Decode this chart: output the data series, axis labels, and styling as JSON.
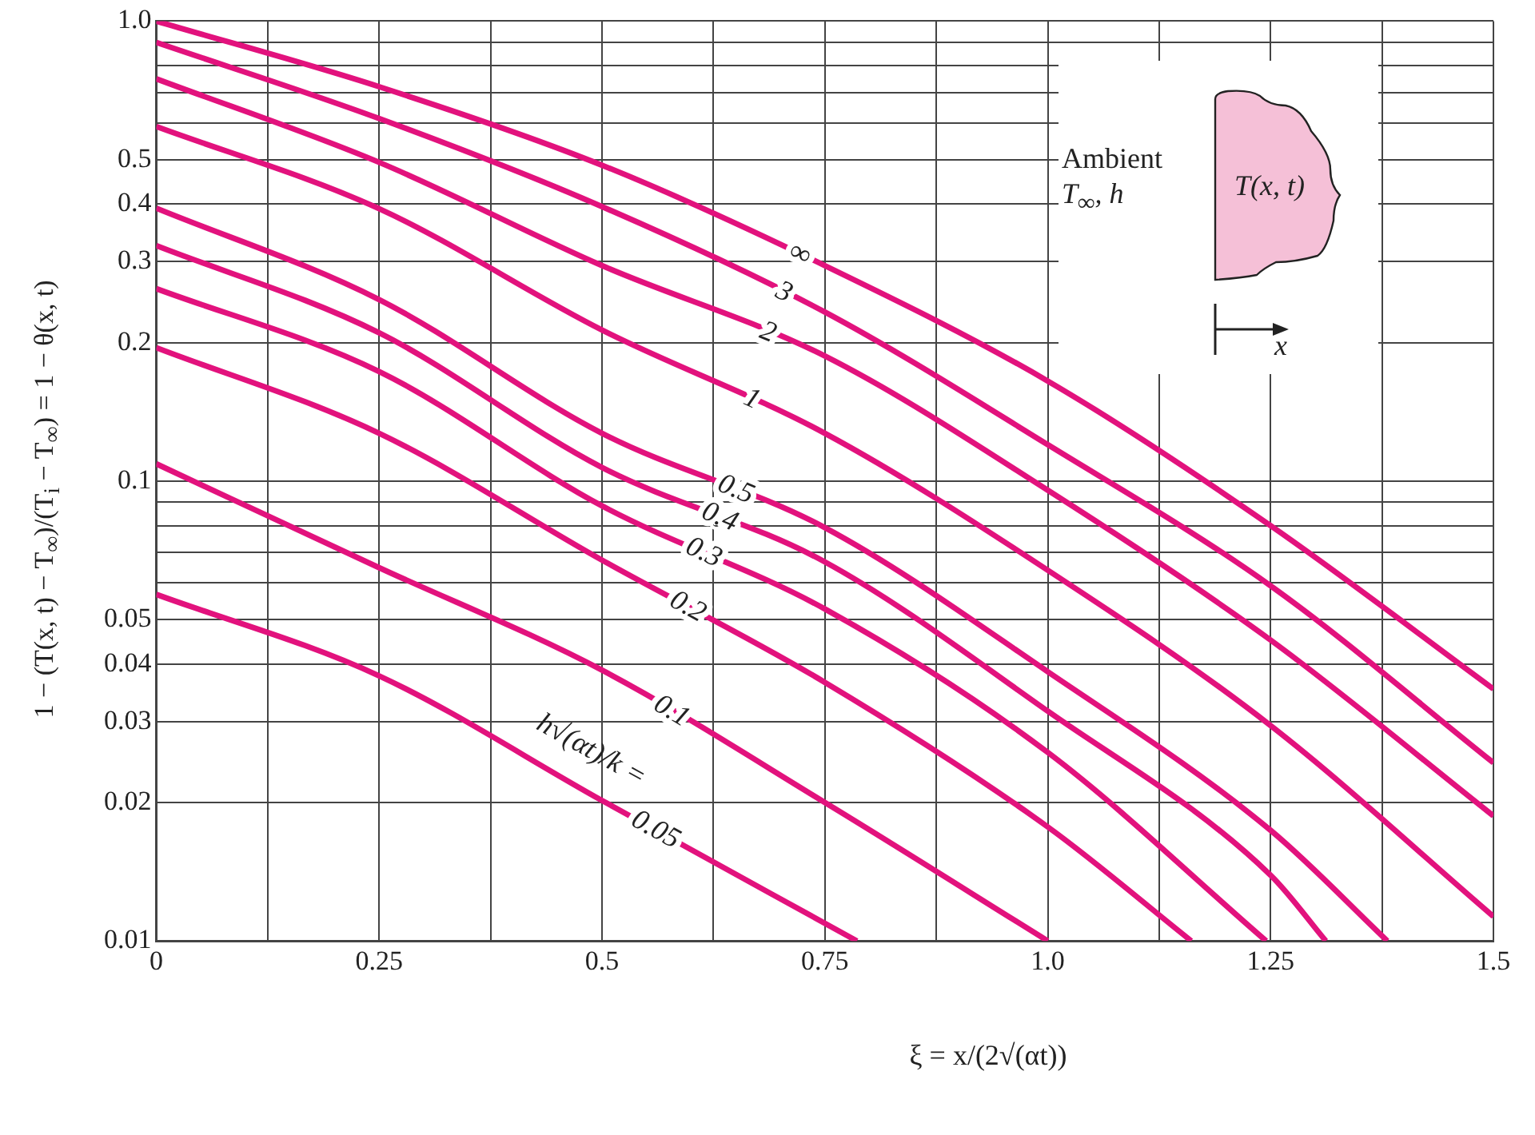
{
  "chart_data": {
    "type": "line",
    "xlabel": "ξ = x/(2√(αt))",
    "ylabel": "1 − (T(x, t) − T$_{∞}$)/(T$_{i}$ − T$_{∞}$) = 1 − θ(x, t)",
    "legend_title": "h√(αt)/k =",
    "annotations": [
      "Ambient",
      "T$_{∞}$, h",
      "T(x, t)",
      "x"
    ],
    "x": [
      0,
      0.25,
      0.5,
      0.75,
      1,
      1.25,
      1.5
    ],
    "series": [
      {
        "name": "∞",
        "color": "#e2127d",
        "values": [
          1.0,
          0.72,
          0.486,
          0.294,
          0.165,
          0.08,
          0.0353
        ]
      },
      {
        "name": "3",
        "color": "#e2127d",
        "values": [
          0.899,
          0.614,
          0.395,
          0.233,
          0.12,
          0.0592,
          0.0244
        ]
      },
      {
        "name": "2",
        "color": "#e2127d",
        "values": [
          0.749,
          0.493,
          0.294,
          0.187,
          0.0955,
          0.0451,
          0.0187
        ]
      },
      {
        "name": "1",
        "color": "#e2127d",
        "values": [
          0.59,
          0.391,
          0.213,
          0.127,
          0.064,
          0.0294,
          0.0113
        ]
      },
      {
        "name": "0.5",
        "color": "#e2127d",
        "x": [
          0,
          0.25,
          0.5,
          0.75,
          1,
          1.25,
          1.381
        ],
        "values": [
          0.392,
          0.248,
          0.127,
          0.0792,
          0.0385,
          0.0174,
          0.01
        ]
      },
      {
        "name": "0.4",
        "color": "#e2127d",
        "x": [
          0,
          0.25,
          0.5,
          0.75,
          1,
          1.25,
          1.312
        ],
        "values": [
          0.325,
          0.21,
          0.107,
          0.0667,
          0.0316,
          0.0139,
          0.01
        ]
      },
      {
        "name": "0.3",
        "color": "#e2127d",
        "x": [
          0,
          0.25,
          0.5,
          0.75,
          1,
          1.245
        ],
        "values": [
          0.262,
          0.173,
          0.0883,
          0.0527,
          0.0257,
          0.01
        ]
      },
      {
        "name": "0.2",
        "color": "#e2127d",
        "x": [
          0,
          0.25,
          0.5,
          0.75,
          1,
          1.161
        ],
        "values": [
          0.195,
          0.127,
          0.0673,
          0.0365,
          0.0177,
          0.01
        ]
      },
      {
        "name": "0.1",
        "color": "#e2127d",
        "x": [
          0,
          0.25,
          0.5,
          0.75,
          1
        ],
        "values": [
          0.109,
          0.0648,
          0.0388,
          0.02,
          0.01
        ]
      },
      {
        "name": "0.05",
        "color": "#e2127d",
        "x": [
          0,
          0.25,
          0.5,
          0.786
        ],
        "values": [
          0.0567,
          0.0377,
          0.0202,
          0.01
        ]
      }
    ],
    "log": "y",
    "grid": true,
    "legend": false,
    "xlim": [
      0,
      1.5
    ],
    "xticks": [
      0,
      {
        "value": 0.125,
        "label": null
      },
      0.25,
      {
        "value": 0.375,
        "label": null
      },
      0.5,
      {
        "value": 0.625,
        "label": null
      },
      0.75,
      {
        "value": 0.875,
        "label": null
      },
      {
        "value": 1,
        "label": "1.0"
      },
      {
        "value": 1.125,
        "label": null
      },
      1.25,
      {
        "value": 1.375,
        "label": null
      },
      1.5
    ],
    "ylim": [
      0.01,
      1
    ],
    "yticks": [
      0.01,
      0.02,
      0.03,
      0.04,
      0.05,
      {
        "value": 0.06,
        "label": null
      },
      {
        "value": 0.07,
        "label": null
      },
      {
        "value": 0.08,
        "label": null
      },
      {
        "value": 0.09,
        "label": null
      },
      0.1,
      0.2,
      0.3,
      0.4,
      0.5,
      {
        "value": 0.6,
        "label": null
      },
      {
        "value": 0.7,
        "label": null
      },
      {
        "value": 0.8,
        "label": null
      },
      {
        "value": 0.9,
        "label": null
      },
      {
        "value": 1,
        "label": "1.0"
      }
    ]
  }
}
